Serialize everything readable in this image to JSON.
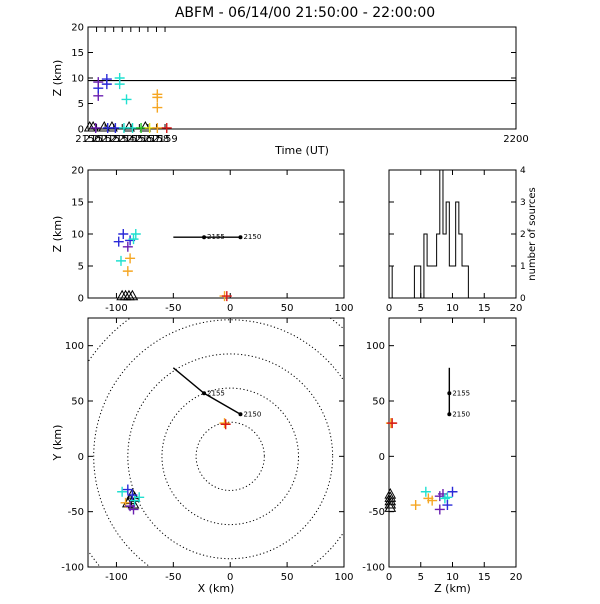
{
  "title": "ABFM - 06/14/00 21:50:00 - 22:00:00",
  "colors": {
    "axis": "#000000",
    "range_circle": "#000000",
    "track": "#000000",
    "station": "#000000",
    "src_purple": "#6a1fb0",
    "src_blue": "#2a2ad8",
    "src_cyan": "#20e0d0",
    "src_orange": "#f5a623",
    "src_green": "#28c828",
    "src_red": "#d81818",
    "src_yellow": "#e8e820"
  },
  "chart_data": [
    {
      "id": "time_height",
      "type": "scatter",
      "xlabel": "Time (UT)",
      "ylabel": "Z (km)",
      "xlim": [
        2150,
        2200
      ],
      "ylim": [
        0,
        20
      ],
      "xticks": [
        2150,
        2151,
        2152,
        2153,
        2154,
        2155,
        2156,
        2157,
        2158,
        2159,
        2200
      ],
      "yticks": [
        0,
        5,
        10,
        15,
        20
      ],
      "hline": 9.5,
      "points": [
        {
          "x": 2151.2,
          "y": 6.5,
          "c": "src_purple"
        },
        {
          "x": 2151.2,
          "y": 8.0,
          "c": "src_blue"
        },
        {
          "x": 2151.2,
          "y": 9.2,
          "c": "src_purple"
        },
        {
          "x": 2152.2,
          "y": 8.8,
          "c": "src_blue"
        },
        {
          "x": 2152.2,
          "y": 9.8,
          "c": "src_blue"
        },
        {
          "x": 2153.7,
          "y": 8.8,
          "c": "src_cyan"
        },
        {
          "x": 2153.7,
          "y": 10.0,
          "c": "src_cyan"
        },
        {
          "x": 2154.5,
          "y": 5.8,
          "c": "src_cyan"
        },
        {
          "x": 2158.1,
          "y": 4.2,
          "c": "src_orange"
        },
        {
          "x": 2158.1,
          "y": 6.2,
          "c": "src_orange"
        },
        {
          "x": 2158.1,
          "y": 6.8,
          "c": "src_orange"
        },
        {
          "x": 2150.9,
          "y": 0.2,
          "c": "src_purple"
        },
        {
          "x": 2152.3,
          "y": 0.2,
          "c": "src_blue"
        },
        {
          "x": 2153.2,
          "y": 0.2,
          "c": "src_blue"
        },
        {
          "x": 2154.2,
          "y": 0.2,
          "c": "src_cyan"
        },
        {
          "x": 2155.2,
          "y": 0.2,
          "c": "src_cyan"
        },
        {
          "x": 2156.2,
          "y": 0.2,
          "c": "src_green"
        },
        {
          "x": 2157.2,
          "y": 0.2,
          "c": "src_yellow"
        },
        {
          "x": 2158.1,
          "y": 0.2,
          "c": "src_orange"
        },
        {
          "x": 2159.2,
          "y": 0.2,
          "c": "src_red"
        }
      ],
      "stations": [
        {
          "x": 2150.2,
          "y": 0.2
        },
        {
          "x": 2150.6,
          "y": 0.2
        },
        {
          "x": 2151.9,
          "y": 0.2
        },
        {
          "x": 2152.8,
          "y": 0.2
        },
        {
          "x": 2154.8,
          "y": 0.2
        },
        {
          "x": 2156.7,
          "y": 0.2
        }
      ]
    },
    {
      "id": "x_height",
      "type": "scatter",
      "xlabel": "",
      "ylabel": "Z (km)",
      "xlim": [
        -125,
        100
      ],
      "ylim": [
        0,
        20
      ],
      "xticks": [
        -100,
        -50,
        0,
        50,
        100
      ],
      "yticks": [
        0,
        5,
        10,
        15,
        20
      ],
      "track": [
        [
          -50,
          9.5
        ],
        [
          9,
          9.5
        ]
      ],
      "track_labels": [
        {
          "x": -23,
          "y": 9.5,
          "text": "2155"
        },
        {
          "x": 9,
          "y": 9.5,
          "text": "2150"
        }
      ],
      "points": [
        {
          "x": -98,
          "y": 8.8,
          "c": "src_blue"
        },
        {
          "x": -94,
          "y": 10.0,
          "c": "src_blue"
        },
        {
          "x": -90,
          "y": 8.0,
          "c": "src_purple"
        },
        {
          "x": -88,
          "y": 9.0,
          "c": "src_blue"
        },
        {
          "x": -85,
          "y": 9.2,
          "c": "src_cyan"
        },
        {
          "x": -83,
          "y": 10.0,
          "c": "src_cyan"
        },
        {
          "x": -96,
          "y": 5.8,
          "c": "src_cyan"
        },
        {
          "x": -88,
          "y": 6.2,
          "c": "src_orange"
        },
        {
          "x": -90,
          "y": 4.2,
          "c": "src_orange"
        },
        {
          "x": -5,
          "y": 0.3,
          "c": "src_orange"
        },
        {
          "x": -3,
          "y": 0.3,
          "c": "src_red"
        }
      ],
      "stations": [
        {
          "x": -95,
          "y": 0.2
        },
        {
          "x": -92,
          "y": 0.2
        },
        {
          "x": -89,
          "y": 0.2
        },
        {
          "x": -86,
          "y": 0.2
        }
      ]
    },
    {
      "id": "histogram",
      "type": "bar",
      "xlabel": "",
      "ylabel": "number of sources",
      "xlim": [
        0,
        20
      ],
      "ylim": [
        0,
        4
      ],
      "xticks": [
        0,
        5,
        10,
        15,
        20
      ],
      "yticks": [
        0,
        1,
        2,
        3,
        4
      ],
      "bin_width": 0.5,
      "bin_start": 0.0,
      "values": [
        1,
        0,
        0,
        0,
        0,
        0,
        0,
        0,
        1,
        1,
        0,
        2,
        1,
        1,
        1,
        2,
        4,
        2,
        3,
        1,
        1,
        3,
        2,
        1,
        1,
        0,
        0,
        0,
        0,
        0,
        0,
        0,
        0,
        0,
        0,
        0,
        0,
        0,
        0,
        0
      ]
    },
    {
      "id": "plan_view",
      "type": "scatter",
      "xlabel": "X (km)",
      "ylabel": "Y (km)",
      "xlim": [
        -125,
        100
      ],
      "ylim": [
        -100,
        125
      ],
      "xticks": [
        -100,
        -50,
        0,
        50,
        100
      ],
      "yticks": [
        -100,
        -50,
        0,
        50,
        100
      ],
      "range_rings": [
        30,
        60,
        90,
        120,
        150
      ],
      "track": [
        [
          -50,
          80
        ],
        [
          -23,
          57
        ],
        [
          9,
          38
        ]
      ],
      "track_labels": [
        {
          "x": -23,
          "y": 57,
          "text": "2155"
        },
        {
          "x": 9,
          "y": 38,
          "text": "2150"
        }
      ],
      "points": [
        {
          "x": -95,
          "y": -32,
          "c": "src_cyan"
        },
        {
          "x": -90,
          "y": -30,
          "c": "src_blue"
        },
        {
          "x": -86,
          "y": -35,
          "c": "src_blue"
        },
        {
          "x": -84,
          "y": -40,
          "c": "src_cyan"
        },
        {
          "x": -80,
          "y": -37,
          "c": "src_cyan"
        },
        {
          "x": -92,
          "y": -42,
          "c": "src_orange"
        },
        {
          "x": -88,
          "y": -45,
          "c": "src_purple"
        },
        {
          "x": -85,
          "y": -48,
          "c": "src_purple"
        },
        {
          "x": -5,
          "y": 30,
          "c": "src_orange"
        },
        {
          "x": -4,
          "y": 29,
          "c": "src_red"
        }
      ],
      "stations": [
        {
          "x": -86,
          "y": -35
        },
        {
          "x": -84,
          "y": -38
        },
        {
          "x": -88,
          "y": -40
        },
        {
          "x": -90,
          "y": -43
        },
        {
          "x": -85,
          "y": -44
        }
      ]
    },
    {
      "id": "z_y",
      "type": "scatter",
      "xlabel": "Z (km)",
      "ylabel": "",
      "xlim": [
        0,
        20
      ],
      "ylim": [
        -100,
        125
      ],
      "xticks": [
        0,
        5,
        10,
        15,
        20
      ],
      "yticks": [
        -100,
        -50,
        0,
        50,
        100
      ],
      "track": [
        [
          9.5,
          80
        ],
        [
          9.5,
          57
        ],
        [
          9.5,
          38
        ]
      ],
      "track_labels": [
        {
          "x": 9.5,
          "y": 57,
          "text": "2155"
        },
        {
          "x": 9.5,
          "y": 38,
          "text": "2150"
        }
      ],
      "points": [
        {
          "x": 0.3,
          "y": 30,
          "c": "src_orange"
        },
        {
          "x": 0.5,
          "y": 30,
          "c": "src_red"
        },
        {
          "x": 4.2,
          "y": -44,
          "c": "src_orange"
        },
        {
          "x": 5.8,
          "y": -32,
          "c": "src_cyan"
        },
        {
          "x": 6.2,
          "y": -38,
          "c": "src_orange"
        },
        {
          "x": 6.8,
          "y": -40,
          "c": "src_orange"
        },
        {
          "x": 8.0,
          "y": -36,
          "c": "src_purple"
        },
        {
          "x": 8.5,
          "y": -34,
          "c": "src_purple"
        },
        {
          "x": 8.8,
          "y": -38,
          "c": "src_cyan"
        },
        {
          "x": 9.2,
          "y": -37,
          "c": "src_cyan"
        },
        {
          "x": 10.0,
          "y": -32,
          "c": "src_blue"
        },
        {
          "x": 8.0,
          "y": -48,
          "c": "src_purple"
        },
        {
          "x": 9.2,
          "y": -44,
          "c": "src_blue"
        }
      ],
      "stations": [
        {
          "x": 0.2,
          "y": -35
        },
        {
          "x": 0.2,
          "y": -38
        },
        {
          "x": 0.2,
          "y": -41
        },
        {
          "x": 0.2,
          "y": -44
        },
        {
          "x": 0.2,
          "y": -47
        }
      ]
    }
  ]
}
